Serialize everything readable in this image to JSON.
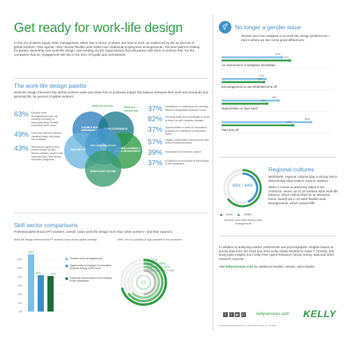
{
  "header": {
    "title": "Get ready for work-life design",
    "intro": "In this era of talent supply chain management, talent has a choice of where and how to work, as evidenced by the 31 percent of global workers—free agents—who choose flexible work styles over traditional employment arrangements. The best talent is looking for greater ownership over work-life design, and seeking out the organizations that will partner with them to achieve this. For the companies that do, engagement will rise in the form of loyalty and commitment."
  },
  "palette": {
    "title": "The work-life design palette",
    "description": "Work-life design elements that global workers value and draw from to positively impact the balance between their work and demands and personal life, by percent of global workers:",
    "left_stats": [
      {
        "pct": "63%",
        "text": "Flexible work arrangements such as working remotely or telecommuting, flexible schedules and hours"
      },
      {
        "pct": "49%",
        "text": "Paid time off that includes vacation days, sick days, and holidays"
      },
      {
        "pct": "43%",
        "text": "Wellness programs that could include on-site fitness centers, health club memberships, and stress reduction programs"
      }
    ],
    "right_stats": [
      {
        "pct": "37%",
        "text": "Limitations or restrictions for working beyond designated business hours"
      },
      {
        "pct": "82%",
        "text": "Growing skills and knowledge in order to keep up with industry changes"
      },
      {
        "pct": "37%",
        "text": "Opportunities to work on innovative projects and initiatives during work hours"
      },
      {
        "pct": "57%",
        "text": "Highly collaborative environment with cross-functional teams"
      },
      {
        "pct": "39%",
        "text": "Innovative and creative culture"
      },
      {
        "pct": "37%",
        "text": "A fostered environment of friendships in the workplace"
      }
    ],
    "venn": {
      "flexible": "FLEXIBLE WORK ARRANGEMENTS",
      "work_governance": "WORK GOVERNANCE",
      "wellness": "WELLNESS PROGRAMS",
      "paid_time_off": "PAID TIME OFF",
      "ongoing_learning": "ONGOING LEARNING & SKILLS ENHANCEMENT",
      "workplace_culture": "WORKPLACE CULTURE",
      "top_label_left": "WORK-LIFE BALANCE",
      "top_label_right": "WORK-LIFE SATISFACTION"
    }
  },
  "skill": {
    "title": "Skill sector comparisons",
    "description": "Professional/technical (PT) workers, overall, value work-life design more than other workers—and they expect it.",
    "chart1_caption": "Work-life design elements that PT workers value above global average:",
    "chart2_caption": "I feel I am in a position of high demand in the workforce:",
    "chart1_legend": [
      "Flexible work arrangements",
      "Opportunity to engage in innovative projects during work hours",
      "Fostered environment of friendships in the workplace"
    ],
    "chart1_value_labels": [
      "66%",
      "42%",
      "41%"
    ],
    "chart1_yticks": [
      "60%",
      "50%",
      "40%",
      "30%",
      "20%",
      "10%",
      "0%"
    ],
    "arc_labels": [
      "IT / 71%",
      "Finance / 65%",
      "Engineering / 63%",
      "Global average / 50%"
    ]
  },
  "gender": {
    "title": "No longer a gender issue",
    "subtitle": "Women and men weighed in on work-life design preferences—here's where we see some great differences:",
    "rows": [
      {
        "label": "An environment of workplace friendships"
      },
      {
        "label": "Encouragement to use all allotted time off"
      },
      {
        "label": "Opportunities to \"give back\""
      },
      {
        "label": "Paid time off"
      }
    ]
  },
  "regional": {
    "title": "Regional cultures",
    "donut_center": "65% / 44%",
    "legend_apac": "APAC",
    "legend_emea": "EMEA",
    "donut_caption": "Workers who value flexible work arrangements",
    "paragraph1": "Worldwide, regional cultures play a strong role in determining what matters most to workers.",
    "paragraph2": "When it comes to attracting talent in the Americas, seven out of 10 workers want work-life balance, which ranked third as an attraction factor. Nearly six in 10 want flexible work arrangements, which ranked fifth."
  },
  "footer": {
    "about": "In addition to analyzing worker preferences and psychographic insights based on survey data from the 2015 and 2014 Kelly Global Workforce Index™ (KGWI), this study pulls insights from Kelly Free Agent Research (2015) survey data and other research sources.",
    "visit_prefix": "Visit ",
    "visit_link": "kellyservices.com",
    "visit_suffix": " for additional studies, articles, and insights.",
    "url": "kellyservices.com",
    "logo": "KELLY",
    "legal": "An Equal Opportunity Employer © 2016 Kelly Services, Inc. 16-0074"
  },
  "chart_data": [
    {
      "type": "bar",
      "title": "Work-life design elements that PT workers value above global average:",
      "categories": [
        "Flexible work arrangements",
        "Opportunity to engage in innovative projects during work hours",
        "Fostered environment of friendships in the workplace"
      ],
      "values": [
        66,
        42,
        41
      ],
      "ylim": [
        0,
        70
      ]
    },
    {
      "type": "bar",
      "title": "No longer a gender issue",
      "categories": [
        "An environment of workplace friendships",
        "Encouragement to use all allotted time off",
        "Opportunities to \"give back\"",
        "Paid time off"
      ],
      "series": [
        {
          "values": [
            37,
            27,
            35,
            55
          ]
        },
        {
          "values": [
            42,
            26,
            28,
            44
          ]
        }
      ]
    },
    {
      "type": "pie",
      "categories": [
        "APAC",
        "EMEA"
      ],
      "values": [
        65,
        44
      ]
    },
    {
      "type": "pie",
      "title": "I feel I am in a position of high demand in the workforce:",
      "categories": [
        "IT",
        "Finance",
        "Engineering",
        "Global average"
      ],
      "values": [
        71,
        65,
        63,
        50
      ]
    }
  ],
  "colors": {
    "green": "#2e9a45",
    "blue": "#3f8fc4",
    "dark_green": "#1f6b3a",
    "light_blue": "#7cc0e6"
  }
}
